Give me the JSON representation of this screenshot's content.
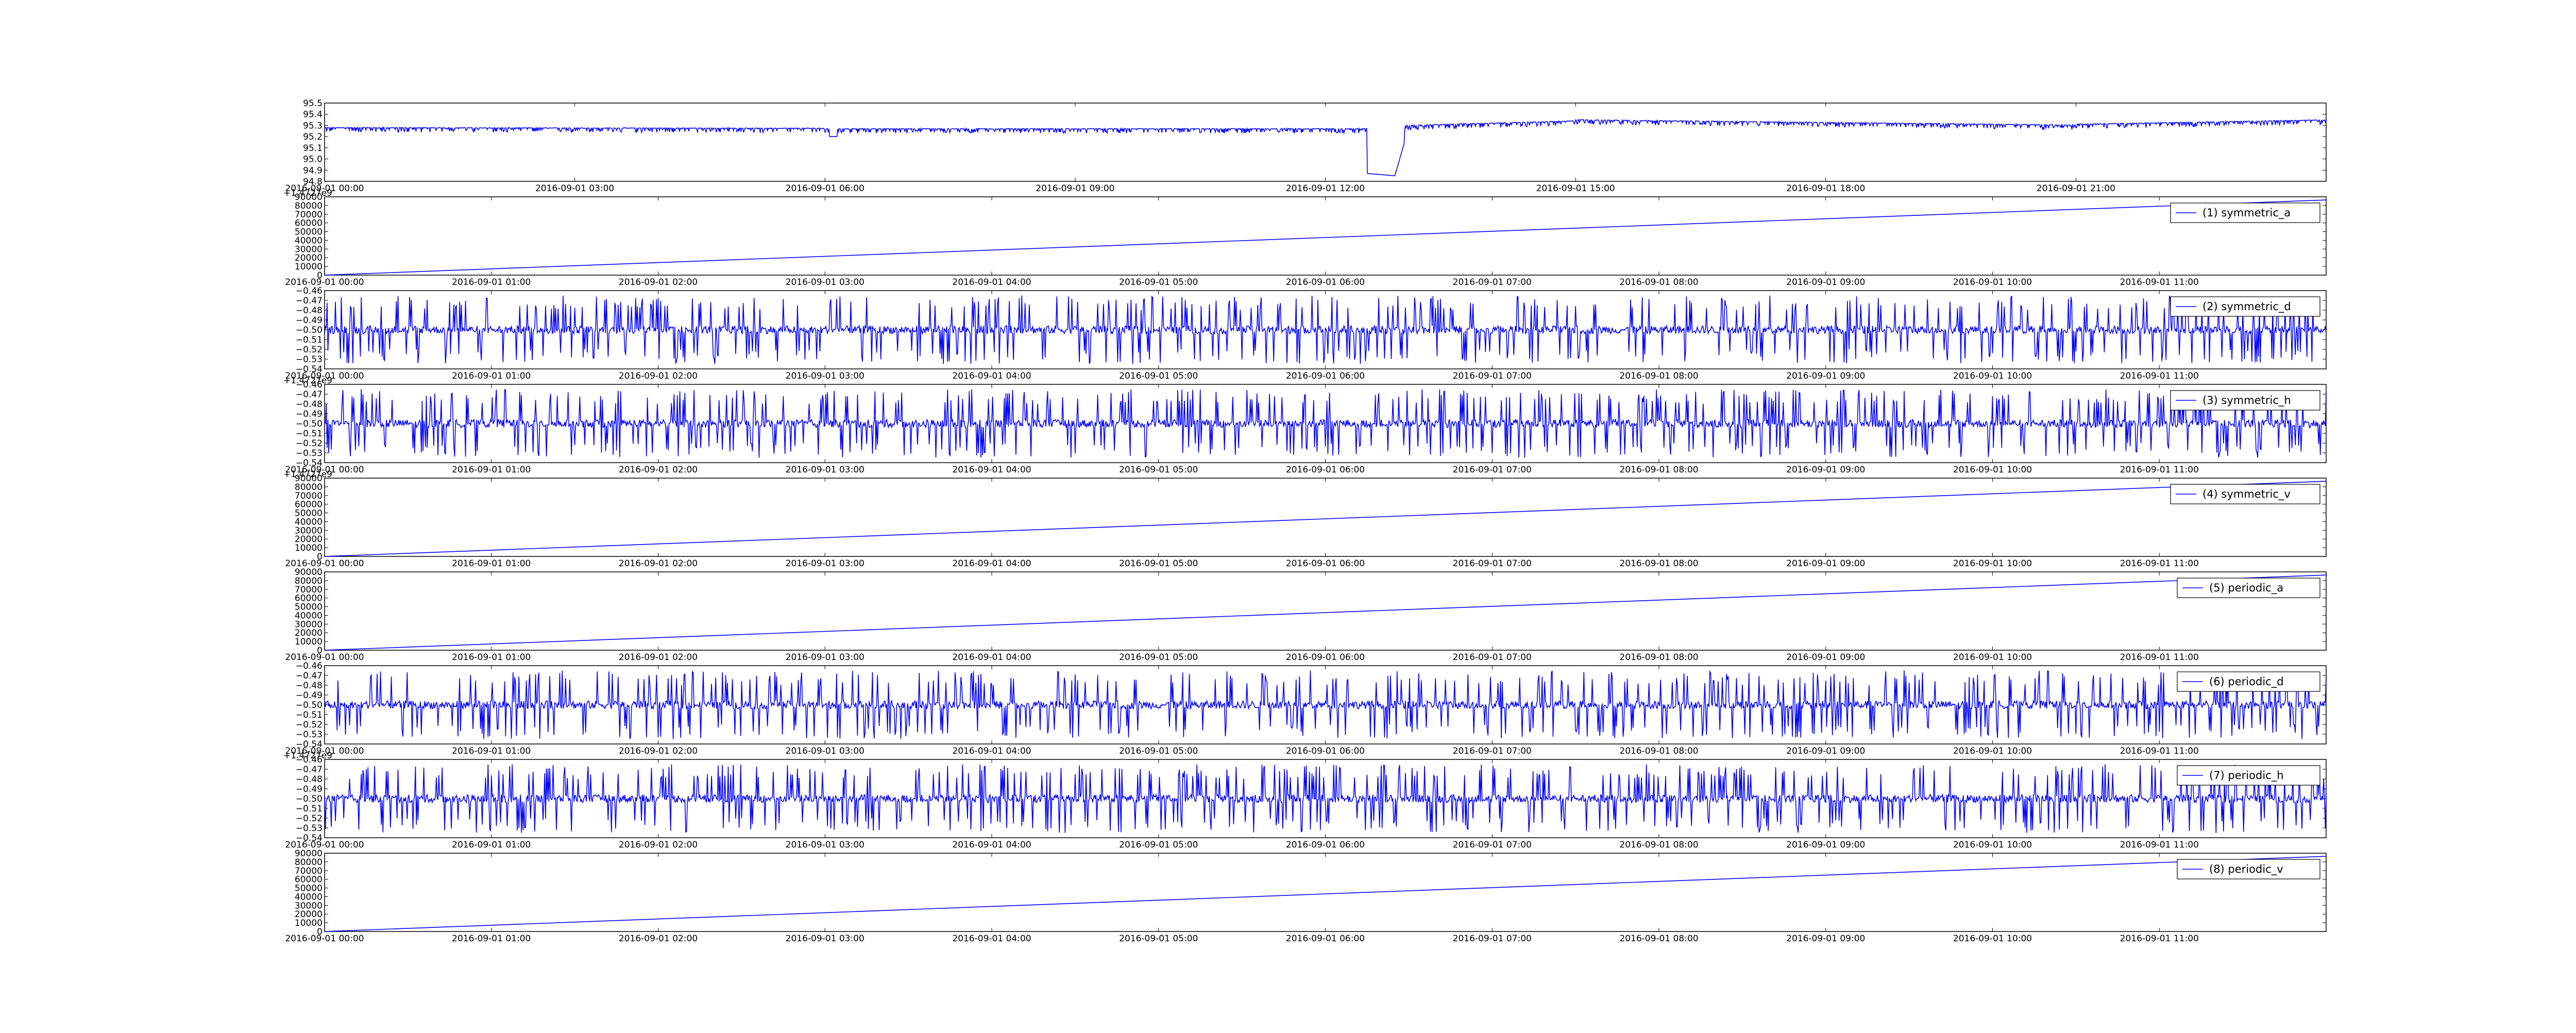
{
  "colors": {
    "line": "#0000ff",
    "axes": "#000000",
    "background": "#ffffff",
    "legend_border": "#000000"
  },
  "chart_data": [
    {
      "id": 0,
      "type": "line",
      "legend": "",
      "yticks": [
        "94.8",
        "94.9",
        "95.0",
        "95.1",
        "95.2",
        "95.3",
        "95.4",
        "95.5"
      ],
      "ylim": [
        94.8,
        95.5
      ],
      "xticks": [
        "2016-09-01 00:00",
        "2016-09-01 03:00",
        "2016-09-01 06:00",
        "2016-09-01 09:00",
        "2016-09-01 12:00",
        "2016-09-01 15:00",
        "2016-09-01 18:00",
        "2016-09-01 21:00"
      ],
      "offset_label": "",
      "pattern": "spiky_baseline",
      "series": [
        {
          "x": [
            "2016-09-01 00:00",
            "2016-09-01 06:00",
            "2016-09-01 12:50",
            "2016-09-01 13:00",
            "2016-09-01 15:00",
            "2016-09-01 21:00",
            "2016-09-02 00:00"
          ],
          "values": [
            95.28,
            95.27,
            94.85,
            95.28,
            95.35,
            95.3,
            95.35
          ]
        }
      ]
    },
    {
      "id": 1,
      "type": "line",
      "legend": "(1) symmetric_a",
      "yticks": [
        "0",
        "10000",
        "20000",
        "30000",
        "40000",
        "50000",
        "60000",
        "70000",
        "80000",
        "90000"
      ],
      "ylim": [
        0,
        90000
      ],
      "xticks": [
        "2016-09-01 00:00",
        "2016-09-01 01:00",
        "2016-09-01 02:00",
        "2016-09-01 03:00",
        "2016-09-01 04:00",
        "2016-09-01 05:00",
        "2016-09-01 06:00",
        "2016-09-01 07:00",
        "2016-09-01 08:00",
        "2016-09-01 09:00",
        "2016-09-01 10:00",
        "2016-09-01 11:00"
      ],
      "offset_label": "+1.4727e9",
      "pattern": "ramp",
      "series": [
        {
          "x": [
            "2016-09-01 00:00",
            "2016-09-01 12:00"
          ],
          "values": [
            0,
            86400
          ]
        }
      ]
    },
    {
      "id": 2,
      "type": "line",
      "legend": "(2) symmetric_d",
      "yticks": [
        "−0.54",
        "−0.53",
        "−0.52",
        "−0.51",
        "−0.50",
        "−0.49",
        "−0.48",
        "−0.47",
        "−0.46"
      ],
      "ylim": [
        -0.54,
        -0.46
      ],
      "xticks": [
        "2016-09-01 00:00",
        "2016-09-01 01:00",
        "2016-09-01 02:00",
        "2016-09-01 03:00",
        "2016-09-01 04:00",
        "2016-09-01 05:00",
        "2016-09-01 06:00",
        "2016-09-01 07:00",
        "2016-09-01 08:00",
        "2016-09-01 09:00",
        "2016-09-01 10:00",
        "2016-09-01 11:00"
      ],
      "offset_label": "",
      "pattern": "oscillating",
      "series": [
        {
          "x": [
            "2016-09-01 00:00",
            "2016-09-01 12:00"
          ],
          "values": [
            -0.5,
            -0.5
          ]
        }
      ]
    },
    {
      "id": 3,
      "type": "line",
      "legend": "(3) symmetric_h",
      "yticks": [
        "−0.54",
        "−0.53",
        "−0.52",
        "−0.51",
        "−0.50",
        "−0.49",
        "−0.48",
        "−0.47",
        "−0.46"
      ],
      "ylim": [
        -0.54,
        -0.46
      ],
      "xticks": [
        "2016-09-01 00:00",
        "2016-09-01 01:00",
        "2016-09-01 02:00",
        "2016-09-01 03:00",
        "2016-09-01 04:00",
        "2016-09-01 05:00",
        "2016-09-01 06:00",
        "2016-09-01 07:00",
        "2016-09-01 08:00",
        "2016-09-01 09:00",
        "2016-09-01 10:00",
        "2016-09-01 11:00"
      ],
      "offset_label": "+1.4727e9",
      "pattern": "oscillating",
      "series": [
        {
          "x": [
            "2016-09-01 00:00",
            "2016-09-01 12:00"
          ],
          "values": [
            -0.5,
            -0.5
          ]
        }
      ]
    },
    {
      "id": 4,
      "type": "line",
      "legend": "(4) symmetric_v",
      "yticks": [
        "0",
        "10000",
        "20000",
        "30000",
        "40000",
        "50000",
        "60000",
        "70000",
        "80000",
        "90000"
      ],
      "ylim": [
        0,
        90000
      ],
      "xticks": [
        "2016-09-01 00:00",
        "2016-09-01 01:00",
        "2016-09-01 02:00",
        "2016-09-01 03:00",
        "2016-09-01 04:00",
        "2016-09-01 05:00",
        "2016-09-01 06:00",
        "2016-09-01 07:00",
        "2016-09-01 08:00",
        "2016-09-01 09:00",
        "2016-09-01 10:00",
        "2016-09-01 11:00"
      ],
      "offset_label": "+1.4727e9",
      "pattern": "ramp",
      "series": [
        {
          "x": [
            "2016-09-01 00:00",
            "2016-09-01 12:00"
          ],
          "values": [
            0,
            86400
          ]
        }
      ]
    },
    {
      "id": 5,
      "type": "line",
      "legend": "(5) periodic_a",
      "yticks": [
        "0",
        "10000",
        "20000",
        "30000",
        "40000",
        "50000",
        "60000",
        "70000",
        "80000",
        "90000"
      ],
      "ylim": [
        0,
        90000
      ],
      "xticks": [
        "2016-09-01 00:00",
        "2016-09-01 01:00",
        "2016-09-01 02:00",
        "2016-09-01 03:00",
        "2016-09-01 04:00",
        "2016-09-01 05:00",
        "2016-09-01 06:00",
        "2016-09-01 07:00",
        "2016-09-01 08:00",
        "2016-09-01 09:00",
        "2016-09-01 10:00",
        "2016-09-01 11:00"
      ],
      "offset_label": "",
      "pattern": "ramp",
      "series": [
        {
          "x": [
            "2016-09-01 00:00",
            "2016-09-01 12:00"
          ],
          "values": [
            0,
            86400
          ]
        }
      ]
    },
    {
      "id": 6,
      "type": "line",
      "legend": "(6) periodic_d",
      "yticks": [
        "−0.54",
        "−0.53",
        "−0.52",
        "−0.51",
        "−0.50",
        "−0.49",
        "−0.48",
        "−0.47",
        "−0.46"
      ],
      "ylim": [
        -0.54,
        -0.46
      ],
      "xticks": [
        "2016-09-01 00:00",
        "2016-09-01 01:00",
        "2016-09-01 02:00",
        "2016-09-01 03:00",
        "2016-09-01 04:00",
        "2016-09-01 05:00",
        "2016-09-01 06:00",
        "2016-09-01 07:00",
        "2016-09-01 08:00",
        "2016-09-01 09:00",
        "2016-09-01 10:00",
        "2016-09-01 11:00"
      ],
      "offset_label": "",
      "pattern": "oscillating",
      "series": [
        {
          "x": [
            "2016-09-01 00:00",
            "2016-09-01 12:00"
          ],
          "values": [
            -0.5,
            -0.5
          ]
        }
      ]
    },
    {
      "id": 7,
      "type": "line",
      "legend": "(7) periodic_h",
      "yticks": [
        "−0.54",
        "−0.53",
        "−0.52",
        "−0.51",
        "−0.50",
        "−0.49",
        "−0.48",
        "−0.47",
        "−0.46"
      ],
      "ylim": [
        -0.54,
        -0.46
      ],
      "xticks": [
        "2016-09-01 00:00",
        "2016-09-01 01:00",
        "2016-09-01 02:00",
        "2016-09-01 03:00",
        "2016-09-01 04:00",
        "2016-09-01 05:00",
        "2016-09-01 06:00",
        "2016-09-01 07:00",
        "2016-09-01 08:00",
        "2016-09-01 09:00",
        "2016-09-01 10:00",
        "2016-09-01 11:00"
      ],
      "offset_label": "+1.4727e9",
      "pattern": "oscillating",
      "series": [
        {
          "x": [
            "2016-09-01 00:00",
            "2016-09-01 12:00"
          ],
          "values": [
            -0.5,
            -0.5
          ]
        }
      ]
    },
    {
      "id": 8,
      "type": "line",
      "legend": "(8) periodic_v",
      "yticks": [
        "0",
        "10000",
        "20000",
        "30000",
        "40000",
        "50000",
        "60000",
        "70000",
        "80000",
        "90000"
      ],
      "ylim": [
        0,
        90000
      ],
      "xticks": [
        "2016-09-01 00:00",
        "2016-09-01 01:00",
        "2016-09-01 02:00",
        "2016-09-01 03:00",
        "2016-09-01 04:00",
        "2016-09-01 05:00",
        "2016-09-01 06:00",
        "2016-09-01 07:00",
        "2016-09-01 08:00",
        "2016-09-01 09:00",
        "2016-09-01 10:00",
        "2016-09-01 11:00"
      ],
      "offset_label": "",
      "pattern": "ramp",
      "series": [
        {
          "x": [
            "2016-09-01 00:00",
            "2016-09-01 12:00"
          ],
          "values": [
            0,
            86400
          ]
        }
      ]
    }
  ]
}
